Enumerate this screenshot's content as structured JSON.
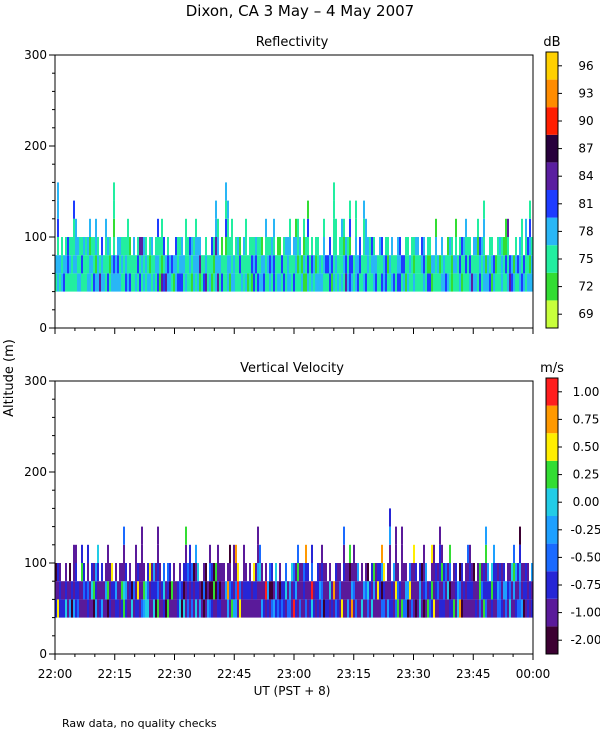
{
  "figure": {
    "title": "Dixon, CA  3 May –  4 May 2007",
    "ylabel": "Altitude (m)",
    "xlabel": "UT  (PST + 8)",
    "footnote": "Raw data, no quality checks",
    "x_ticks": [
      "22:00",
      "22:15",
      "22:30",
      "22:45",
      "23:00",
      "23:15",
      "23:30",
      "23:45",
      "00:00"
    ]
  },
  "chart_data": [
    {
      "type": "heatmap",
      "title": "Reflectivity",
      "ylabel": "Altitude (m)",
      "xlabel": "UT  (PST + 8)",
      "ylim": [
        0,
        300
      ],
      "y_ticks": [
        "0",
        "100",
        "200",
        "300"
      ],
      "xlim": [
        "22:00",
        "00:00"
      ],
      "data_range_m": [
        40,
        160
      ],
      "colorbar": {
        "unit": "dB",
        "labels": [
          "69",
          "72",
          "75",
          "78",
          "81",
          "84",
          "87",
          "90",
          "93",
          "96"
        ],
        "colors": [
          "#c8ff3c",
          "#33dd33",
          "#22eea0",
          "#29b6f6",
          "#1e3cff",
          "#5a1ea0",
          "#28003c",
          "#ff1e00",
          "#ff8c00",
          "#ffd000"
        ]
      },
      "dominant_values": [
        "75",
        "78",
        "81"
      ]
    },
    {
      "type": "heatmap",
      "title": "Vertical Velocity",
      "ylabel": "Altitude (m)",
      "xlabel": "UT  (PST + 8)",
      "ylim": [
        0,
        300
      ],
      "y_ticks": [
        "0",
        "100",
        "200",
        "300"
      ],
      "xlim": [
        "22:00",
        "00:00"
      ],
      "data_range_m": [
        40,
        160
      ],
      "colorbar": {
        "unit": "m/s",
        "labels": [
          "-2.00",
          "-1.00",
          "-0.75",
          "-0.50",
          "-0.25",
          "0.00",
          "0.25",
          "0.50",
          "0.75",
          "1.00"
        ],
        "colors": [
          "#3c0032",
          "#5a1a9a",
          "#2626d6",
          "#1a6aff",
          "#1ea0ff",
          "#22cce6",
          "#33dd33",
          "#ffee00",
          "#ff9900",
          "#ff1e1e"
        ]
      },
      "dominant_values": [
        "-1.00",
        "-0.75"
      ]
    }
  ]
}
